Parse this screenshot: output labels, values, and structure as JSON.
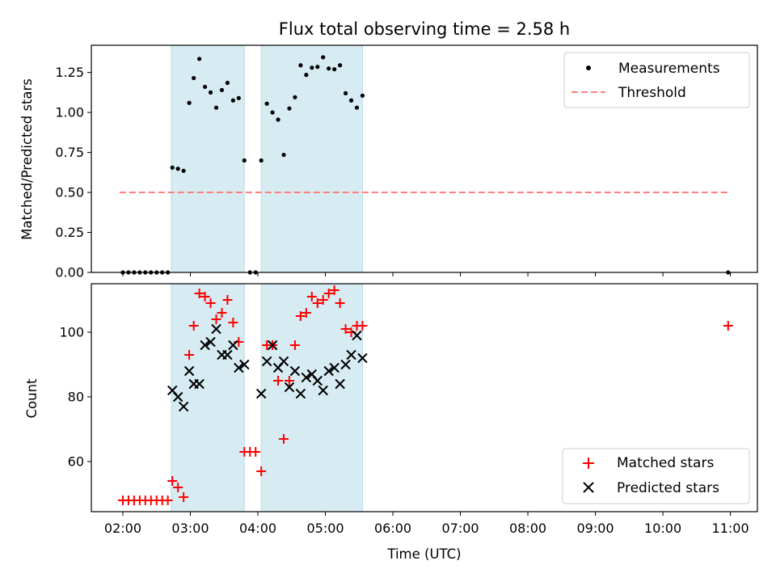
{
  "chart_data": [
    {
      "type": "scatter",
      "title": "Flux total observing time = 2.58 h",
      "xlabel": "",
      "ylabel": "Matched/Predicted stars",
      "ylim": [
        0,
        1.42
      ],
      "yticks": [
        "0.00",
        "0.25",
        "0.50",
        "0.75",
        "1.00",
        "1.25"
      ],
      "legend_position": "top-right",
      "shaded_intervals": [
        [
          "02:43",
          "03:48"
        ],
        [
          "04:03",
          "05:33"
        ]
      ],
      "series": [
        {
          "name": "Measurements",
          "marker": "dot",
          "color": "#000000",
          "points": [
            [
              "02:00",
              0
            ],
            [
              "02:05",
              0
            ],
            [
              "02:10",
              0
            ],
            [
              "02:15",
              0
            ],
            [
              "02:20",
              0
            ],
            [
              "02:25",
              0
            ],
            [
              "02:30",
              0
            ],
            [
              "02:35",
              0
            ],
            [
              "02:40",
              0
            ],
            [
              "02:44",
              0.655
            ],
            [
              "02:49",
              0.648
            ],
            [
              "02:54",
              0.635
            ],
            [
              "02:59",
              1.06
            ],
            [
              "03:03",
              1.215
            ],
            [
              "03:08",
              1.335
            ],
            [
              "03:13",
              1.16
            ],
            [
              "03:18",
              1.125
            ],
            [
              "03:23",
              1.03
            ],
            [
              "03:28",
              1.14
            ],
            [
              "03:33",
              1.185
            ],
            [
              "03:38",
              1.075
            ],
            [
              "03:43",
              1.09
            ],
            [
              "03:48",
              0.7
            ],
            [
              "03:53",
              0
            ],
            [
              "03:58",
              0
            ],
            [
              "04:03",
              0.7
            ],
            [
              "04:08",
              1.055
            ],
            [
              "04:13",
              1.0
            ],
            [
              "04:18",
              0.955
            ],
            [
              "04:23",
              0.735
            ],
            [
              "04:28",
              1.025
            ],
            [
              "04:33",
              1.095
            ],
            [
              "04:38",
              1.295
            ],
            [
              "04:43",
              1.235
            ],
            [
              "04:48",
              1.28
            ],
            [
              "04:53",
              1.285
            ],
            [
              "04:58",
              1.345
            ],
            [
              "05:03",
              1.275
            ],
            [
              "05:08",
              1.27
            ],
            [
              "05:13",
              1.295
            ],
            [
              "05:18",
              1.12
            ],
            [
              "05:23",
              1.075
            ],
            [
              "05:28",
              1.03
            ],
            [
              "05:33",
              1.105
            ],
            [
              "10:58",
              0
            ]
          ]
        },
        {
          "name": "Threshold",
          "marker": "dashed-line",
          "color": "#ff7f7f",
          "points": [
            [
              "01:57",
              0.5
            ],
            [
              "10:58",
              0.5
            ]
          ]
        }
      ]
    },
    {
      "type": "scatter",
      "title": "",
      "xlabel": "Time (UTC)",
      "ylabel": "Count",
      "ylim": [
        44.5,
        115
      ],
      "yticks": [
        "60",
        "80",
        "100"
      ],
      "xticks": [
        "02:00",
        "03:00",
        "04:00",
        "05:00",
        "06:00",
        "07:00",
        "08:00",
        "09:00",
        "10:00",
        "11:00"
      ],
      "legend_position": "bottom-right",
      "shaded_intervals": [
        [
          "02:43",
          "03:48"
        ],
        [
          "04:03",
          "05:33"
        ]
      ],
      "series": [
        {
          "name": "Matched stars",
          "marker": "plus",
          "color": "#ff0000",
          "points": [
            [
              "02:00",
              48
            ],
            [
              "02:05",
              48
            ],
            [
              "02:10",
              48
            ],
            [
              "02:15",
              48
            ],
            [
              "02:20",
              48
            ],
            [
              "02:25",
              48
            ],
            [
              "02:30",
              48
            ],
            [
              "02:35",
              48
            ],
            [
              "02:40",
              48
            ],
            [
              "02:44",
              54
            ],
            [
              "02:49",
              52
            ],
            [
              "02:54",
              49
            ],
            [
              "02:59",
              93
            ],
            [
              "03:03",
              102
            ],
            [
              "03:08",
              112
            ],
            [
              "03:13",
              111
            ],
            [
              "03:18",
              109
            ],
            [
              "03:23",
              104
            ],
            [
              "03:28",
              106
            ],
            [
              "03:33",
              110
            ],
            [
              "03:38",
              103
            ],
            [
              "03:43",
              97
            ],
            [
              "03:48",
              63
            ],
            [
              "03:53",
              63
            ],
            [
              "03:58",
              63
            ],
            [
              "04:03",
              57
            ],
            [
              "04:08",
              96
            ],
            [
              "04:13",
              96
            ],
            [
              "04:18",
              85
            ],
            [
              "04:23",
              67
            ],
            [
              "04:28",
              85
            ],
            [
              "04:33",
              96
            ],
            [
              "04:38",
              105
            ],
            [
              "04:43",
              106
            ],
            [
              "04:48",
              111
            ],
            [
              "04:53",
              109
            ],
            [
              "04:58",
              110
            ],
            [
              "05:03",
              112
            ],
            [
              "05:08",
              113
            ],
            [
              "05:13",
              109
            ],
            [
              "05:18",
              101
            ],
            [
              "05:23",
              100
            ],
            [
              "05:28",
              102
            ],
            [
              "05:33",
              102
            ],
            [
              "10:58",
              102
            ]
          ]
        },
        {
          "name": "Predicted stars",
          "marker": "x",
          "color": "#000000",
          "points": [
            [
              "02:44",
              82
            ],
            [
              "02:49",
              80
            ],
            [
              "02:54",
              77
            ],
            [
              "02:59",
              88
            ],
            [
              "03:03",
              84
            ],
            [
              "03:08",
              84
            ],
            [
              "03:13",
              96
            ],
            [
              "03:18",
              97
            ],
            [
              "03:23",
              101
            ],
            [
              "03:28",
              93
            ],
            [
              "03:33",
              93
            ],
            [
              "03:38",
              96
            ],
            [
              "03:43",
              89
            ],
            [
              "03:48",
              90
            ],
            [
              "04:03",
              81
            ],
            [
              "04:08",
              91
            ],
            [
              "04:13",
              96
            ],
            [
              "04:18",
              89
            ],
            [
              "04:23",
              91
            ],
            [
              "04:28",
              83
            ],
            [
              "04:33",
              88
            ],
            [
              "04:38",
              81
            ],
            [
              "04:43",
              86
            ],
            [
              "04:48",
              87
            ],
            [
              "04:53",
              85
            ],
            [
              "04:58",
              82
            ],
            [
              "05:03",
              88
            ],
            [
              "05:08",
              89
            ],
            [
              "05:13",
              84
            ],
            [
              "05:18",
              90
            ],
            [
              "05:23",
              93
            ],
            [
              "05:28",
              99
            ],
            [
              "05:33",
              92
            ]
          ]
        }
      ]
    }
  ]
}
